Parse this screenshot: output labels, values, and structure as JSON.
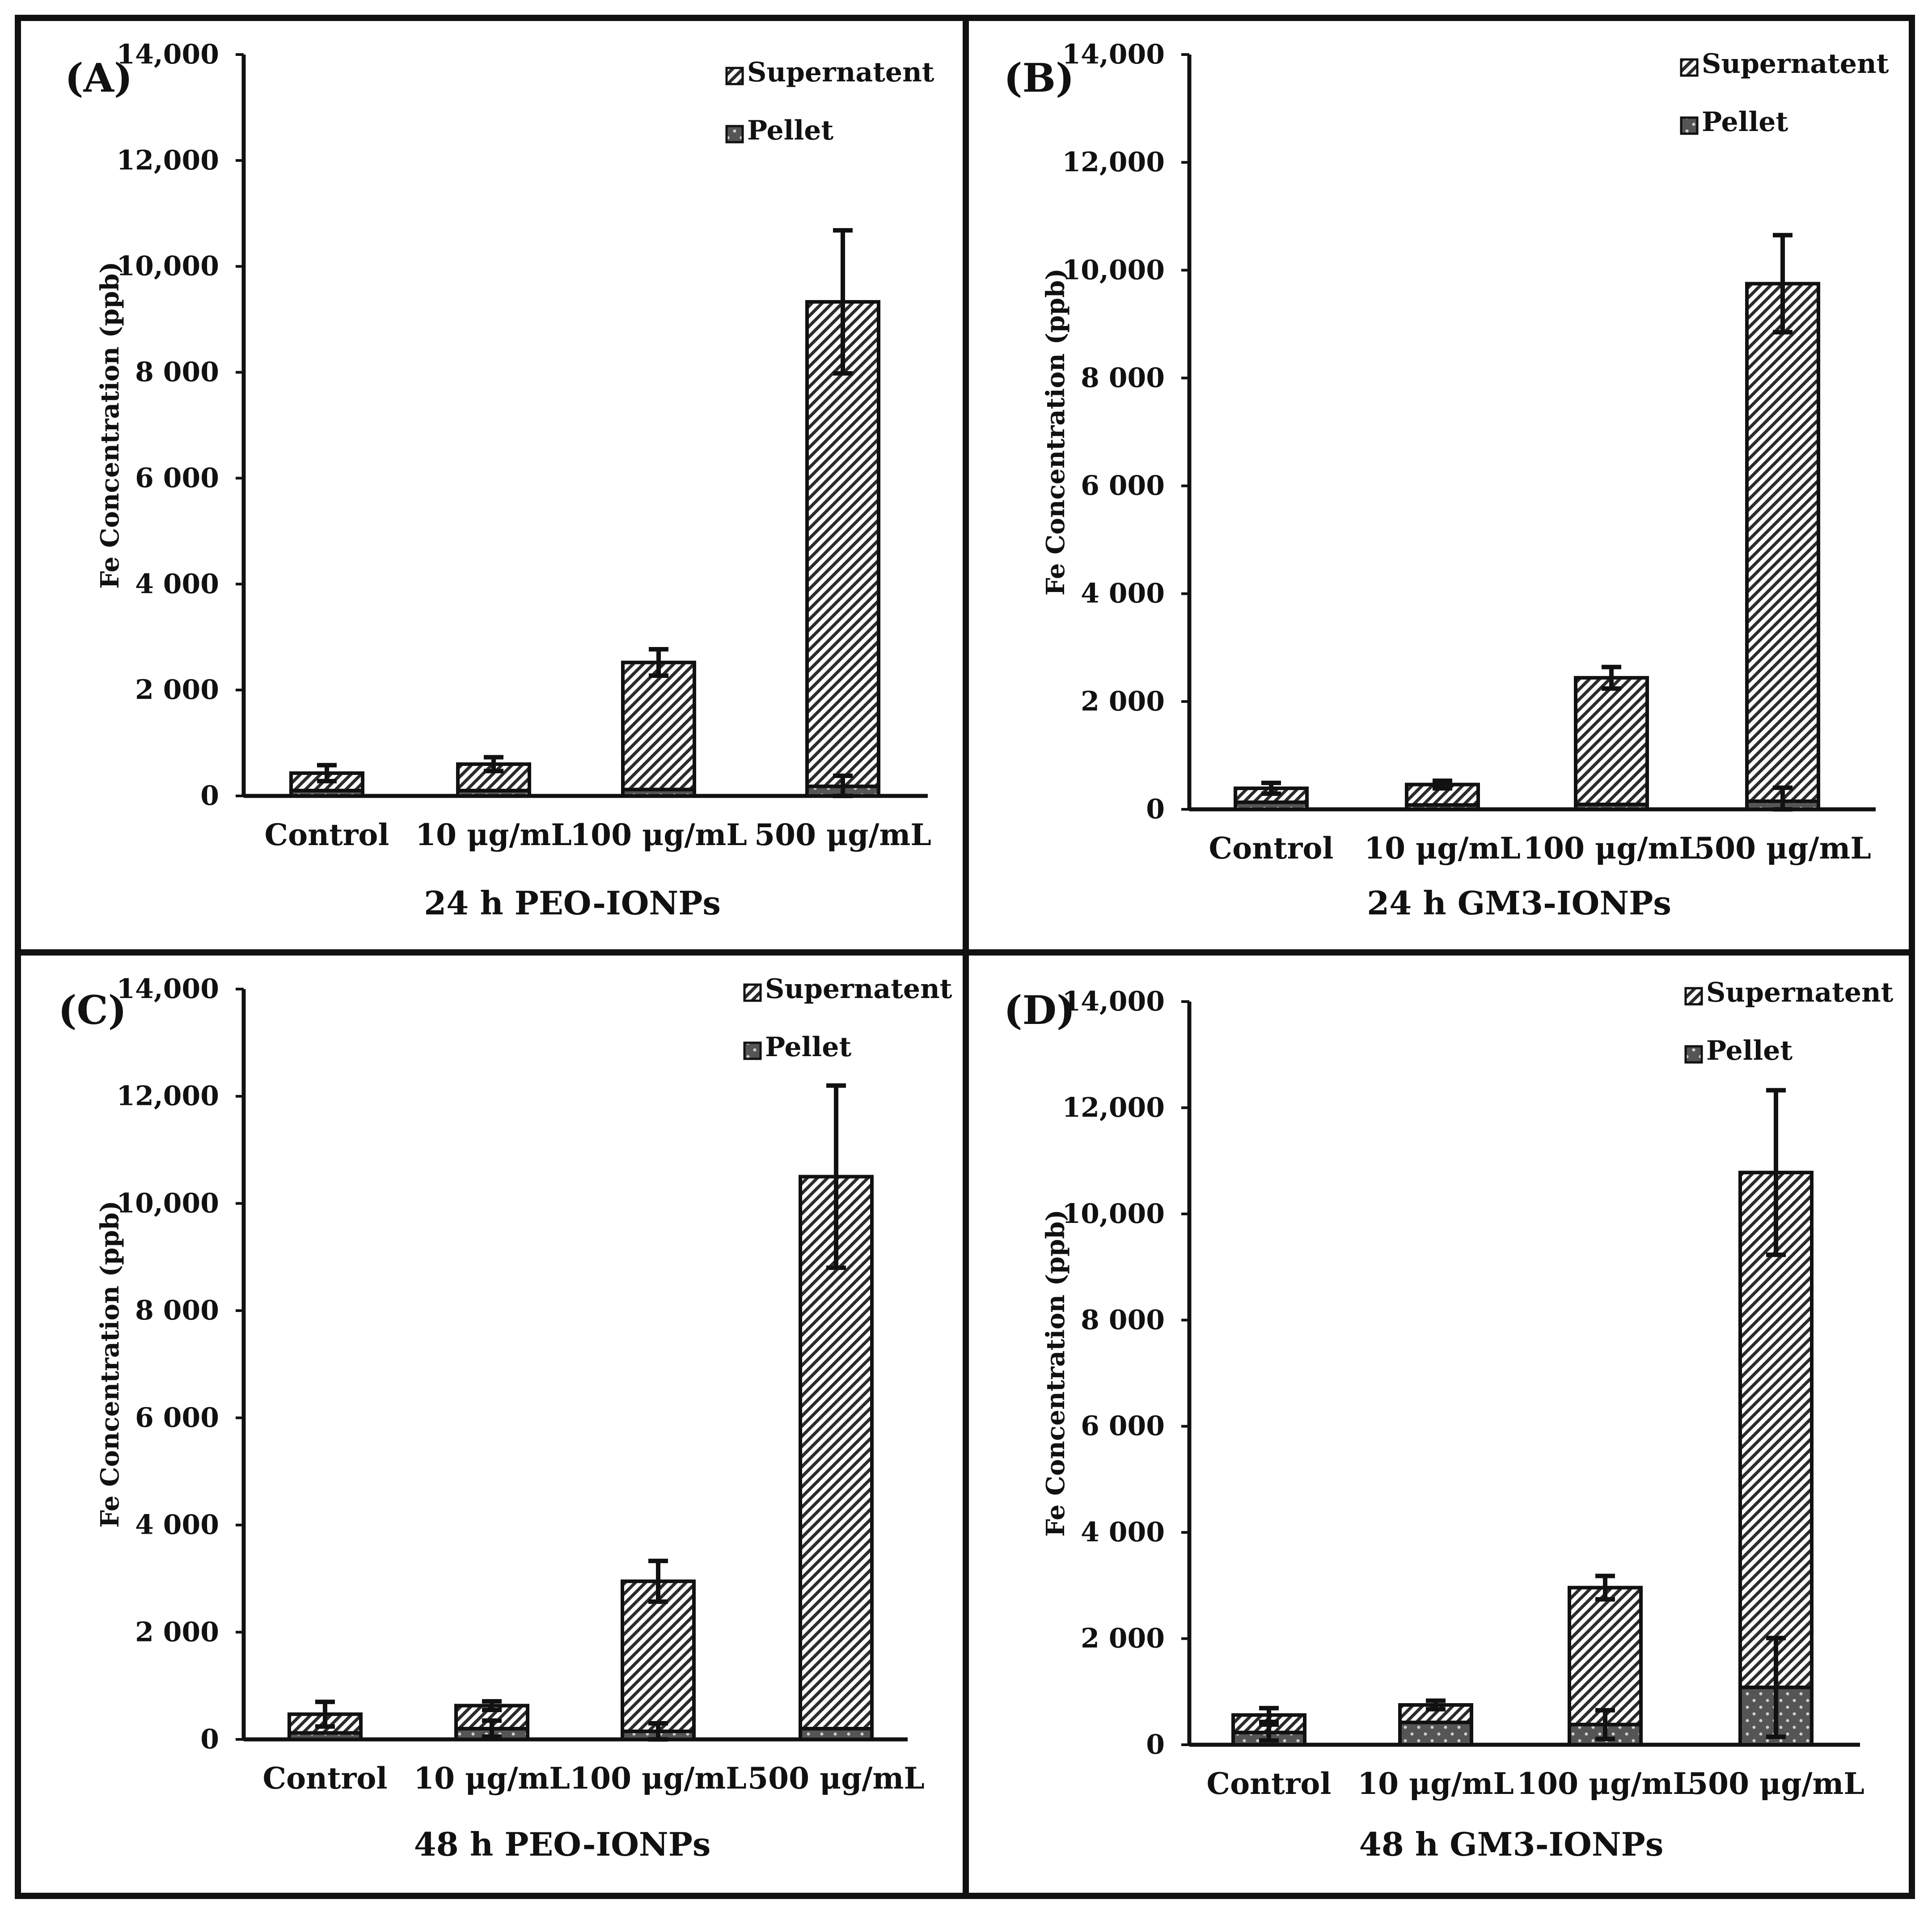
{
  "colors": {
    "frame": "#111111",
    "bar_outline": "#111111",
    "supernatant_hatch": "#2b2b2b",
    "pellet_fill": "#555555",
    "pellet_dot": "#cfcfcf",
    "background": "#ffffff"
  },
  "chart_data": [
    {
      "type": "bar",
      "stacked": true,
      "panel_label": "(A)",
      "title": "24 h PEO-IONPs",
      "ylabel": "Fe Concentration  (ppb)",
      "xlabel": "24 h PEO-IONPs",
      "ylim": [
        0,
        14000
      ],
      "yticks": [
        0,
        2000,
        4000,
        6000,
        8000,
        10000,
        12000,
        14000
      ],
      "ytick_labels": [
        "0",
        "2 000",
        "4 000",
        "6 000",
        "8 000",
        "10,000",
        "12,000",
        "14,000"
      ],
      "categories": [
        "Control",
        "10 μg/mL",
        "100 μg/mL",
        "500 μg/mL"
      ],
      "legend": [
        "Supernatent",
        "Pellet"
      ],
      "legend_position": "top-right",
      "series": [
        {
          "name": "Pellet",
          "values": [
            100,
            100,
            120,
            180
          ],
          "errors": [
            0,
            0,
            0,
            200
          ]
        },
        {
          "name": "Supernatent",
          "values": [
            330,
            500,
            2400,
            9150
          ],
          "errors": [
            150,
            130,
            250,
            1350
          ]
        }
      ]
    },
    {
      "type": "bar",
      "stacked": true,
      "panel_label": "(B)",
      "title": "24 h GM3-IONPs",
      "ylabel": "Fe Concentration  (ppb)",
      "xlabel": "24 h GM3-IONPs",
      "ylim": [
        0,
        14000
      ],
      "yticks": [
        0,
        2000,
        4000,
        6000,
        8000,
        10000,
        12000,
        14000
      ],
      "ytick_labels": [
        "0",
        "2 000",
        "4 000",
        "6 000",
        "8 000",
        "10,000",
        "12,000",
        "14,000"
      ],
      "categories": [
        "Control",
        "10 μg/mL",
        "100 μg/mL",
        "500 μg/mL"
      ],
      "legend": [
        "Supernatent",
        "Pellet"
      ],
      "legend_position": "top-right",
      "series": [
        {
          "name": "Pellet",
          "values": [
            130,
            80,
            90,
            150
          ],
          "errors": [
            0,
            0,
            0,
            250
          ]
        },
        {
          "name": "Supernatent",
          "values": [
            260,
            380,
            2350,
            9600
          ],
          "errors": [
            100,
            70,
            200,
            900
          ]
        }
      ]
    },
    {
      "type": "bar",
      "stacked": true,
      "panel_label": "(C)",
      "title": "48 h PEO-IONPs",
      "ylabel": "Fe Concentration  (ppb)",
      "xlabel": "48 h PEO-IONPs",
      "ylim": [
        0,
        14000
      ],
      "yticks": [
        0,
        2000,
        4000,
        6000,
        8000,
        10000,
        12000,
        14000
      ],
      "ytick_labels": [
        "0",
        "2 000",
        "4 000",
        "6 000",
        "8 000",
        "10,000",
        "12,000",
        "14,000"
      ],
      "categories": [
        "Control",
        "10 μg/mL",
        "100 μg/mL",
        "500 μg/mL"
      ],
      "legend": [
        "Supernatent",
        "Pellet"
      ],
      "legend_position": "top-right",
      "series": [
        {
          "name": "Pellet",
          "values": [
            120,
            200,
            150,
            200
          ],
          "errors": [
            0,
            150,
            150,
            0
          ]
        },
        {
          "name": "Supernatent",
          "values": [
            350,
            430,
            2800,
            10300
          ],
          "errors": [
            230,
            80,
            380,
            1700
          ]
        }
      ]
    },
    {
      "type": "bar",
      "stacked": true,
      "panel_label": "(D)",
      "title": "48 h GM3-IONPs",
      "ylabel": "Fe Concentration  (ppb)",
      "xlabel": "48 h GM3-IONPs",
      "ylim": [
        0,
        14000
      ],
      "yticks": [
        0,
        2000,
        4000,
        6000,
        8000,
        10000,
        12000,
        14000
      ],
      "ytick_labels": [
        "0",
        "2 000",
        "4 000",
        "6 000",
        "8 000",
        "10,000",
        "12,000",
        "14,000"
      ],
      "categories": [
        "Control",
        "10 μg/mL",
        "100 μg/mL",
        "500 μg/mL"
      ],
      "legend": [
        "Supernatent",
        "Pellet"
      ],
      "legend_position": "top-right",
      "series": [
        {
          "name": "Pellet",
          "values": [
            230,
            420,
            380,
            1080
          ],
          "errors": [
            150,
            0,
            270,
            930
          ]
        },
        {
          "name": "Supernatent",
          "values": [
            330,
            330,
            2580,
            9700
          ],
          "errors": [
            130,
            80,
            220,
            1550
          ]
        }
      ]
    }
  ]
}
